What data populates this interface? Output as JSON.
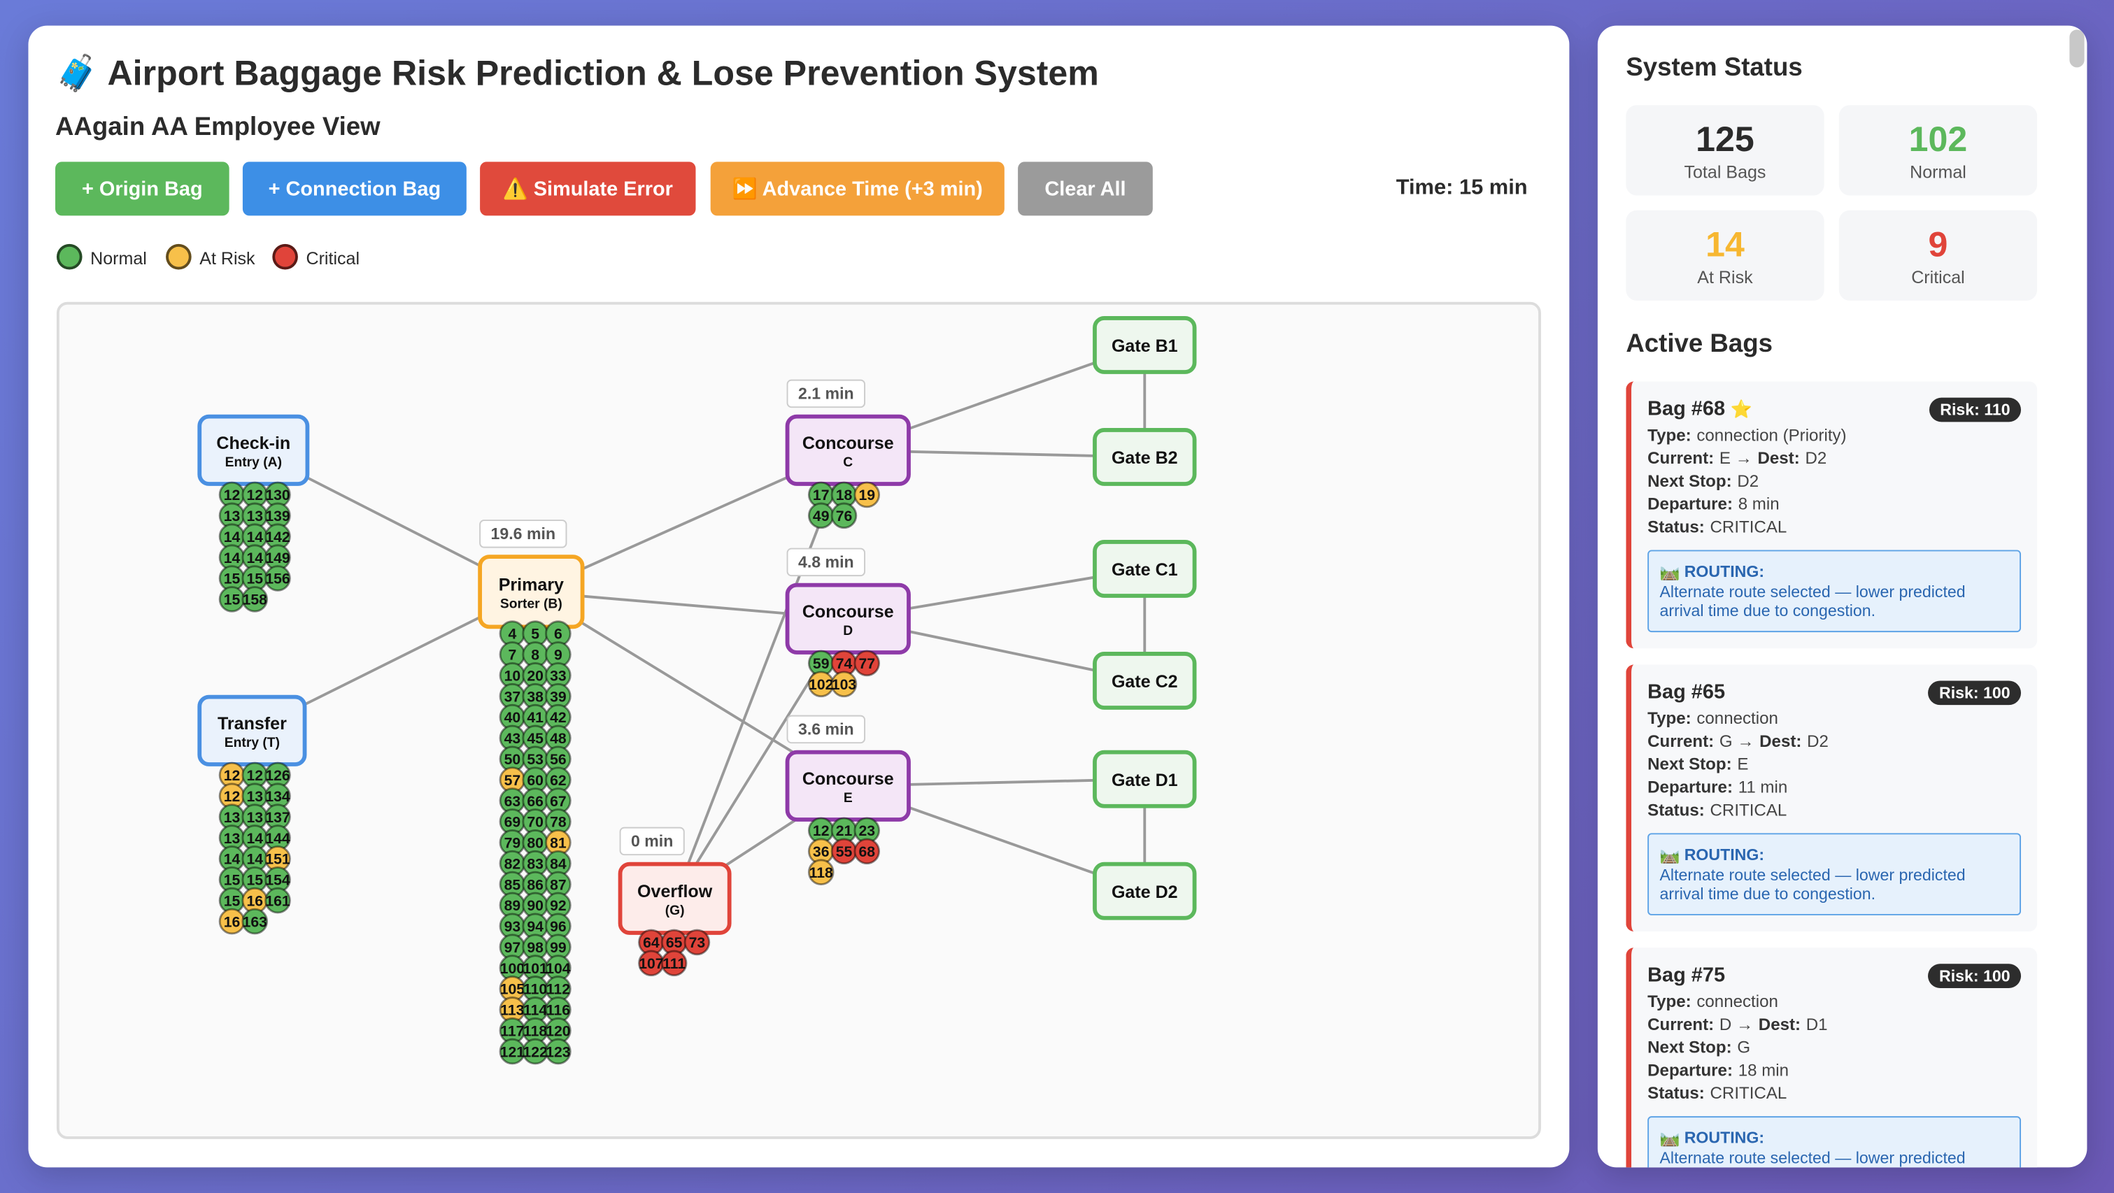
{
  "header": {
    "title": "🧳 Airport Baggage Risk Prediction & Lose Prevention System",
    "subtitle": "AAgain AA Employee View",
    "buttons": [
      {
        "label": "+ Origin Bag",
        "color": "#5cb85c"
      },
      {
        "label": "+ Connection Bag",
        "color": "#3d8fe6"
      },
      {
        "label": "⚠️ Simulate Error",
        "color": "#e04a3c"
      },
      {
        "label": "⏩ Advance Time (+3 min)",
        "color": "#f4a13a"
      },
      {
        "label": "Clear All",
        "color": "#9b9b9b"
      }
    ],
    "time": "Time: 15 min"
  },
  "legend": [
    {
      "label": "Normal",
      "color": "#5cb85c"
    },
    {
      "label": "At Risk",
      "color": "#f7c04a"
    },
    {
      "label": "Critical",
      "color": "#e0443a"
    }
  ],
  "graph": {
    "nodes": [
      {
        "label": "Check-in",
        "sublabel": "Entry (A)",
        "bags": [
          {
            "label": "12",
            "color": "#5cb85c"
          },
          {
            "label": "12",
            "color": "#5cb85c"
          },
          {
            "label": "130",
            "color": "#5cb85c"
          },
          {
            "label": "13",
            "color": "#5cb85c"
          },
          {
            "label": "13",
            "color": "#5cb85c"
          },
          {
            "label": "139",
            "color": "#5cb85c"
          },
          {
            "label": "14",
            "color": "#5cb85c"
          },
          {
            "label": "14",
            "color": "#5cb85c"
          },
          {
            "label": "142",
            "color": "#5cb85c"
          },
          {
            "label": "14",
            "color": "#5cb85c"
          },
          {
            "label": "14",
            "color": "#5cb85c"
          },
          {
            "label": "149",
            "color": "#5cb85c"
          },
          {
            "label": "15",
            "color": "#5cb85c"
          },
          {
            "label": "15",
            "color": "#5cb85c"
          },
          {
            "label": "156",
            "color": "#5cb85c"
          },
          {
            "label": "15",
            "color": "#5cb85c"
          },
          {
            "label": "158",
            "color": "#5cb85c"
          }
        ]
      },
      {
        "label": "Transfer",
        "sublabel": "Entry (T)",
        "bags": [
          {
            "label": "12",
            "color": "#f7c04a"
          },
          {
            "label": "12",
            "color": "#5cb85c"
          },
          {
            "label": "126",
            "color": "#5cb85c"
          },
          {
            "label": "12",
            "color": "#f7c04a"
          },
          {
            "label": "13",
            "color": "#5cb85c"
          },
          {
            "label": "134",
            "color": "#5cb85c"
          },
          {
            "label": "13",
            "color": "#5cb85c"
          },
          {
            "label": "13",
            "color": "#5cb85c"
          },
          {
            "label": "137",
            "color": "#5cb85c"
          },
          {
            "label": "13",
            "color": "#5cb85c"
          },
          {
            "label": "14",
            "color": "#5cb85c"
          },
          {
            "label": "144",
            "color": "#5cb85c"
          },
          {
            "label": "14",
            "color": "#5cb85c"
          },
          {
            "label": "14",
            "color": "#5cb85c"
          },
          {
            "label": "151",
            "color": "#f7c04a"
          },
          {
            "label": "15",
            "color": "#5cb85c"
          },
          {
            "label": "15",
            "color": "#5cb85c"
          },
          {
            "label": "154",
            "color": "#5cb85c"
          },
          {
            "label": "15",
            "color": "#5cb85c"
          },
          {
            "label": "16",
            "color": "#f7c04a"
          },
          {
            "label": "161",
            "color": "#5cb85c"
          },
          {
            "label": "16",
            "color": "#f7c04a"
          },
          {
            "label": "163",
            "color": "#5cb85c"
          }
        ]
      },
      {
        "label": "Primary",
        "sublabel": "Sorter (B)",
        "badge": "19.6 min",
        "bags": [
          {
            "label": "4",
            "color": "#5cb85c"
          },
          {
            "label": "5",
            "color": "#5cb85c"
          },
          {
            "label": "6",
            "color": "#5cb85c"
          },
          {
            "label": "7",
            "color": "#5cb85c"
          },
          {
            "label": "8",
            "color": "#5cb85c"
          },
          {
            "label": "9",
            "color": "#5cb85c"
          },
          {
            "label": "10",
            "color": "#5cb85c"
          },
          {
            "label": "20",
            "color": "#5cb85c"
          },
          {
            "label": "33",
            "color": "#5cb85c"
          },
          {
            "label": "37",
            "color": "#5cb85c"
          },
          {
            "label": "38",
            "color": "#5cb85c"
          },
          {
            "label": "39",
            "color": "#5cb85c"
          },
          {
            "label": "40",
            "color": "#5cb85c"
          },
          {
            "label": "41",
            "color": "#5cb85c"
          },
          {
            "label": "42",
            "color": "#5cb85c"
          },
          {
            "label": "43",
            "color": "#5cb85c"
          },
          {
            "label": "45",
            "color": "#5cb85c"
          },
          {
            "label": "48",
            "color": "#5cb85c"
          },
          {
            "label": "50",
            "color": "#5cb85c"
          },
          {
            "label": "53",
            "color": "#5cb85c"
          },
          {
            "label": "56",
            "color": "#5cb85c"
          },
          {
            "label": "57",
            "color": "#f7c04a"
          },
          {
            "label": "60",
            "color": "#5cb85c"
          },
          {
            "label": "62",
            "color": "#5cb85c"
          },
          {
            "label": "63",
            "color": "#5cb85c"
          },
          {
            "label": "66",
            "color": "#5cb85c"
          },
          {
            "label": "67",
            "color": "#5cb85c"
          },
          {
            "label": "69",
            "color": "#5cb85c"
          },
          {
            "label": "70",
            "color": "#5cb85c"
          },
          {
            "label": "78",
            "color": "#5cb85c"
          },
          {
            "label": "79",
            "color": "#5cb85c"
          },
          {
            "label": "80",
            "color": "#5cb85c"
          },
          {
            "label": "81",
            "color": "#f7c04a"
          },
          {
            "label": "82",
            "color": "#5cb85c"
          },
          {
            "label": "83",
            "color": "#5cb85c"
          },
          {
            "label": "84",
            "color": "#5cb85c"
          },
          {
            "label": "85",
            "color": "#5cb85c"
          },
          {
            "label": "86",
            "color": "#5cb85c"
          },
          {
            "label": "87",
            "color": "#5cb85c"
          },
          {
            "label": "89",
            "color": "#5cb85c"
          },
          {
            "label": "90",
            "color": "#5cb85c"
          },
          {
            "label": "92",
            "color": "#5cb85c"
          },
          {
            "label": "93",
            "color": "#5cb85c"
          },
          {
            "label": "94",
            "color": "#5cb85c"
          },
          {
            "label": "96",
            "color": "#5cb85c"
          },
          {
            "label": "97",
            "color": "#5cb85c"
          },
          {
            "label": "98",
            "color": "#5cb85c"
          },
          {
            "label": "99",
            "color": "#5cb85c"
          },
          {
            "label": "100",
            "color": "#5cb85c"
          },
          {
            "label": "101",
            "color": "#5cb85c"
          },
          {
            "label": "104",
            "color": "#5cb85c"
          },
          {
            "label": "105",
            "color": "#f7c04a"
          },
          {
            "label": "110",
            "color": "#5cb85c"
          },
          {
            "label": "112",
            "color": "#5cb85c"
          },
          {
            "label": "113",
            "color": "#f7c04a"
          },
          {
            "label": "114",
            "color": "#5cb85c"
          },
          {
            "label": "116",
            "color": "#5cb85c"
          },
          {
            "label": "117",
            "color": "#5cb85c"
          },
          {
            "label": "118",
            "color": "#5cb85c"
          },
          {
            "label": "120",
            "color": "#5cb85c"
          },
          {
            "label": "121",
            "color": "#5cb85c"
          },
          {
            "label": "122",
            "color": "#5cb85c"
          },
          {
            "label": "123",
            "color": "#5cb85c"
          }
        ]
      },
      {
        "label": "Concourse",
        "sublabel": "C",
        "badge": "2.1 min",
        "bags": [
          {
            "label": "17",
            "color": "#5cb85c"
          },
          {
            "label": "18",
            "color": "#5cb85c"
          },
          {
            "label": "19",
            "color": "#f7c04a"
          },
          {
            "label": "49",
            "color": "#5cb85c"
          },
          {
            "label": "76",
            "color": "#5cb85c"
          }
        ]
      },
      {
        "label": "Concourse",
        "sublabel": "D",
        "badge": "4.8 min",
        "bags": [
          {
            "label": "59",
            "color": "#5cb85c"
          },
          {
            "label": "74",
            "color": "#e0443a"
          },
          {
            "label": "77",
            "color": "#e0443a"
          },
          {
            "label": "102",
            "color": "#f7c04a"
          },
          {
            "label": "103",
            "color": "#f7c04a"
          }
        ]
      },
      {
        "label": "Concourse",
        "sublabel": "E",
        "badge": "3.6 min",
        "bags": [
          {
            "label": "12",
            "color": "#5cb85c"
          },
          {
            "label": "21",
            "color": "#5cb85c"
          },
          {
            "label": "23",
            "color": "#5cb85c"
          },
          {
            "label": "36",
            "color": "#f7c04a"
          },
          {
            "label": "55",
            "color": "#e0443a"
          },
          {
            "label": "68",
            "color": "#e0443a"
          },
          {
            "label": "118",
            "color": "#f7c04a"
          }
        ]
      },
      {
        "label": "Overflow",
        "sublabel": "(G)",
        "badge": "0 min",
        "bags": [
          {
            "label": "64",
            "color": "#e0443a"
          },
          {
            "label": "65",
            "color": "#e0443a"
          },
          {
            "label": "73",
            "color": "#e0443a"
          },
          {
            "label": "107",
            "color": "#e0443a"
          },
          {
            "label": "111",
            "color": "#e0443a"
          }
        ]
      },
      {
        "label": "Gate B1"
      },
      {
        "label": "Gate B2"
      },
      {
        "label": "Gate C1"
      },
      {
        "label": "Gate C2"
      },
      {
        "label": "Gate D1"
      },
      {
        "label": "Gate D2"
      }
    ]
  },
  "status": {
    "title": "System Status",
    "stats": [
      {
        "value": 125,
        "label": "Total Bags",
        "color": "#2b2b2b"
      },
      {
        "value": 102,
        "label": "Normal",
        "color": "#5cb85c"
      },
      {
        "value": 14,
        "label": "At Risk",
        "color": "#f7b731"
      },
      {
        "value": 9,
        "label": "Critical",
        "color": "#e0443a"
      }
    ]
  },
  "active": {
    "title": "Active Bags",
    "bags": [
      {
        "title": "Bag #68",
        "icon": "⭐",
        "risk": "Risk: 110",
        "lines": [
          [
            "Type:",
            "connection (Priority)"
          ],
          [
            "Current:",
            "E →",
            "Dest:",
            "D2"
          ],
          [
            "Next Stop:",
            "D2"
          ],
          [
            "Departure:",
            "8 min"
          ],
          [
            "Status:",
            "CRITICAL"
          ]
        ],
        "routing": {
          "title": "🛤️ ROUTING:",
          "text": "Alternate route selected — lower predicted arrival time due to congestion."
        }
      },
      {
        "title": "Bag #65",
        "risk": "Risk: 100",
        "lines": [
          [
            "Type:",
            "connection"
          ],
          [
            "Current:",
            "G →",
            "Dest:",
            "D2"
          ],
          [
            "Next Stop:",
            "E"
          ],
          [
            "Departure:",
            "11 min"
          ],
          [
            "Status:",
            "CRITICAL"
          ]
        ],
        "routing": {
          "title": "🛤️ ROUTING:",
          "text": "Alternate route selected — lower predicted arrival time due to congestion."
        }
      },
      {
        "title": "Bag #75",
        "risk": "Risk: 100",
        "lines": [
          [
            "Type:",
            "connection"
          ],
          [
            "Current:",
            "D →",
            "Dest:",
            "D1"
          ],
          [
            "Next Stop:",
            "G"
          ],
          [
            "Departure:",
            "18 min"
          ],
          [
            "Status:",
            "CRITICAL"
          ]
        ],
        "routing": {
          "title": "🛤️ ROUTING:",
          "text": "Alternate route selected — lower predicted arrival time due to congestion."
        }
      }
    ]
  }
}
